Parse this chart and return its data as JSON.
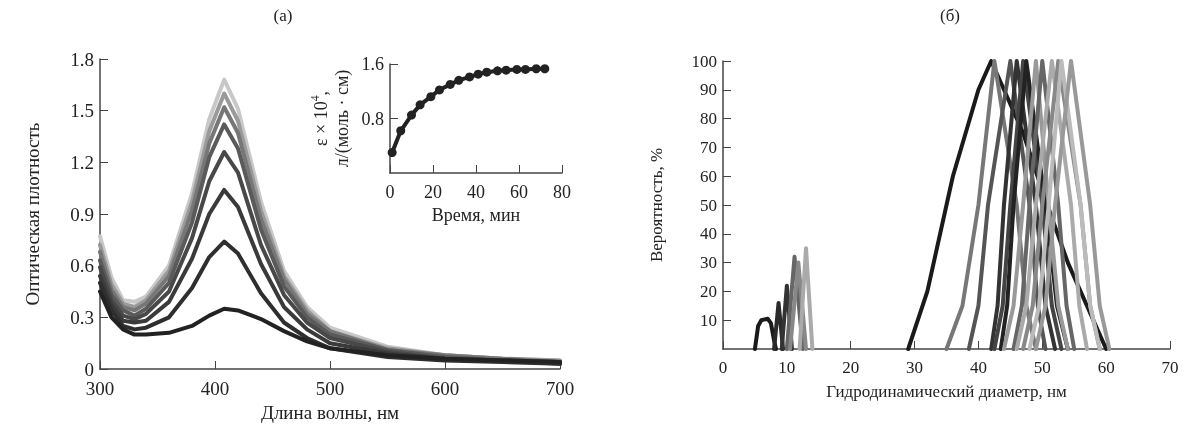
{
  "chart_data": [
    {
      "type": "line",
      "title": "(а)",
      "xlabel": "Длина волны, нм",
      "ylabel": "Оптическая плотность",
      "xlim": [
        300,
        700
      ],
      "ylim": [
        0,
        1.8
      ],
      "xticks": [
        300,
        400,
        500,
        600,
        700
      ],
      "yticks": [
        0,
        0.3,
        0.6,
        0.9,
        1.2,
        1.5,
        1.8
      ],
      "x": [
        300,
        310,
        320,
        330,
        340,
        360,
        380,
        395,
        408,
        420,
        440,
        460,
        480,
        500,
        550,
        600,
        650,
        700
      ],
      "series": [
        {
          "color": "#c8c8c8",
          "values": [
            0.77,
            0.53,
            0.4,
            0.39,
            0.42,
            0.6,
            1.02,
            1.45,
            1.68,
            1.51,
            0.97,
            0.57,
            0.36,
            0.24,
            0.13,
            0.08,
            0.06,
            0.05
          ]
        },
        {
          "color": "#9a9a9a",
          "values": [
            0.72,
            0.49,
            0.38,
            0.36,
            0.4,
            0.57,
            0.97,
            1.38,
            1.6,
            1.44,
            0.92,
            0.54,
            0.34,
            0.22,
            0.12,
            0.08,
            0.06,
            0.05
          ]
        },
        {
          "color": "#777777",
          "values": [
            0.68,
            0.46,
            0.36,
            0.34,
            0.38,
            0.54,
            0.92,
            1.31,
            1.52,
            1.37,
            0.87,
            0.52,
            0.32,
            0.22,
            0.11,
            0.08,
            0.06,
            0.04
          ]
        },
        {
          "color": "#5a5a5a",
          "values": [
            0.63,
            0.43,
            0.34,
            0.31,
            0.35,
            0.5,
            0.85,
            1.23,
            1.42,
            1.28,
            0.81,
            0.48,
            0.3,
            0.2,
            0.11,
            0.07,
            0.05,
            0.04
          ]
        },
        {
          "color": "#484848",
          "values": [
            0.59,
            0.4,
            0.31,
            0.29,
            0.32,
            0.45,
            0.76,
            1.09,
            1.26,
            1.14,
            0.72,
            0.43,
            0.27,
            0.18,
            0.1,
            0.06,
            0.05,
            0.04
          ]
        },
        {
          "color": "#3a3a3a",
          "values": [
            0.54,
            0.37,
            0.28,
            0.27,
            0.28,
            0.39,
            0.64,
            0.9,
            1.04,
            0.94,
            0.61,
            0.36,
            0.23,
            0.15,
            0.09,
            0.06,
            0.05,
            0.03
          ]
        },
        {
          "color": "#2e2e2e",
          "values": [
            0.5,
            0.34,
            0.25,
            0.23,
            0.24,
            0.3,
            0.47,
            0.65,
            0.74,
            0.67,
            0.44,
            0.27,
            0.18,
            0.12,
            0.07,
            0.05,
            0.04,
            0.03
          ]
        },
        {
          "color": "#222222",
          "values": [
            0.45,
            0.3,
            0.23,
            0.2,
            0.2,
            0.21,
            0.25,
            0.31,
            0.35,
            0.34,
            0.29,
            0.22,
            0.16,
            0.12,
            0.08,
            0.06,
            0.05,
            0.04
          ]
        }
      ]
    },
    {
      "type": "line",
      "xlabel": "Время, мин",
      "ylabel": "ε × 10$^{4}$,\nл/(моль · см)",
      "xlim": [
        0,
        80
      ],
      "ylim": [
        0,
        1.6
      ],
      "xticks": [
        0,
        20,
        40,
        60,
        80
      ],
      "yticks": [
        0.8,
        1.6
      ],
      "marker": "circle",
      "x": [
        1,
        5,
        10,
        14,
        19,
        23,
        28,
        32,
        37,
        41,
        45,
        50,
        54,
        59,
        63,
        68,
        72
      ],
      "series": [
        {
          "color": "#222222",
          "values": [
            0.3,
            0.62,
            0.85,
            1.0,
            1.12,
            1.22,
            1.3,
            1.36,
            1.41,
            1.45,
            1.48,
            1.5,
            1.51,
            1.52,
            1.52,
            1.53,
            1.53
          ]
        }
      ]
    },
    {
      "type": "line",
      "title": "(б)",
      "xlabel": "Гидродинамический диаметр, нм",
      "ylabel": "Вероятность, %",
      "xlim": [
        0,
        70
      ],
      "ylim": [
        0,
        100
      ],
      "xticks": [
        0,
        10,
        20,
        30,
        40,
        50,
        60,
        70
      ],
      "yticks": [
        10,
        20,
        30,
        40,
        50,
        60,
        70,
        80,
        90,
        100
      ],
      "series": [
        {
          "color": "#1a1a1a",
          "x": [
            5,
            5.5,
            6,
            7,
            7.5,
            8,
            8.3
          ],
          "values": [
            0,
            8,
            10,
            10.5,
            9,
            3,
            0
          ]
        },
        {
          "color": "#2a2a2a",
          "x": [
            8,
            8.7,
            9.4
          ],
          "values": [
            0,
            16,
            0
          ]
        },
        {
          "color": "#333333",
          "x": [
            9.2,
            10,
            10.8
          ],
          "values": [
            0,
            22,
            0
          ]
        },
        {
          "color": "#666666",
          "x": [
            10,
            11.2,
            12.5
          ],
          "values": [
            0,
            32,
            0
          ]
        },
        {
          "color": "#888888",
          "x": [
            10.5,
            11.8,
            13
          ],
          "values": [
            0,
            30,
            0
          ]
        },
        {
          "color": "#aaaaaa",
          "x": [
            12,
            13,
            14
          ],
          "values": [
            0,
            35,
            0
          ]
        },
        {
          "color": "#1a1a1a",
          "x": [
            29,
            32,
            36,
            40,
            42,
            44,
            47,
            50,
            54,
            58,
            60
          ],
          "values": [
            0,
            20,
            60,
            90,
            100,
            90,
            75,
            55,
            30,
            10,
            0
          ]
        },
        {
          "color": "#777777",
          "x": [
            35,
            37.5,
            40,
            42.5,
            46,
            47.5,
            49
          ],
          "values": [
            0,
            15,
            50,
            100,
            50,
            15,
            0
          ]
        },
        {
          "color": "#555555",
          "x": [
            38.5,
            40,
            41.5,
            45,
            48,
            49.3,
            50.5
          ],
          "values": [
            0,
            15,
            50,
            100,
            50,
            15,
            0
          ]
        },
        {
          "color": "#333333",
          "x": [
            42,
            43,
            44,
            46,
            49,
            50.5,
            52
          ],
          "values": [
            0,
            15,
            50,
            100,
            50,
            15,
            0
          ]
        },
        {
          "color": "#444444",
          "x": [
            42.5,
            43.8,
            45,
            47,
            50,
            51.5,
            53
          ],
          "values": [
            0,
            15,
            50,
            100,
            50,
            15,
            0
          ]
        },
        {
          "color": "#222222",
          "x": [
            43.5,
            44.5,
            45.5,
            47.5,
            50.5,
            52.3,
            54
          ],
          "values": [
            0,
            15,
            50,
            100,
            50,
            15,
            0
          ]
        },
        {
          "color": "#999999",
          "x": [
            44,
            45.5,
            47,
            49,
            51,
            52.5,
            54
          ],
          "values": [
            0,
            15,
            50,
            100,
            50,
            15,
            0
          ]
        },
        {
          "color": "#666666",
          "x": [
            45.5,
            46.8,
            48,
            50,
            52.5,
            53.8,
            55
          ],
          "values": [
            0,
            15,
            50,
            100,
            50,
            15,
            0
          ]
        },
        {
          "color": "#aaaaaa",
          "x": [
            46,
            47.5,
            49,
            51.5,
            54.5,
            55.8,
            57
          ],
          "values": [
            0,
            15,
            50,
            100,
            50,
            15,
            0
          ]
        },
        {
          "color": "#888888",
          "x": [
            47,
            48.5,
            50,
            52.5,
            56,
            57.5,
            59
          ],
          "values": [
            0,
            15,
            50,
            100,
            50,
            15,
            0
          ]
        },
        {
          "color": "#bbbbbb",
          "x": [
            48,
            49.5,
            51,
            53,
            56,
            57.5,
            59
          ],
          "values": [
            0,
            15,
            50,
            100,
            50,
            15,
            0
          ]
        },
        {
          "color": "#999999",
          "x": [
            49,
            50.5,
            52,
            54.5,
            57.5,
            59,
            60.5
          ],
          "values": [
            0,
            15,
            50,
            100,
            50,
            15,
            0
          ]
        }
      ]
    }
  ]
}
